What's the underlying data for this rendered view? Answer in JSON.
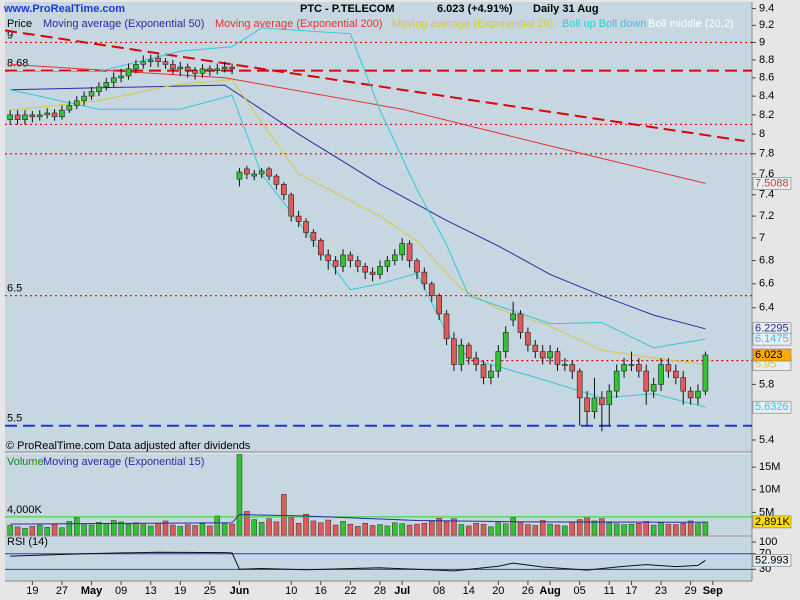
{
  "header": {
    "site": "www.ProRealTime.com",
    "instrument": "PTC - P.TELECOM",
    "last": "6.023 (+4.91%)",
    "period": "Daily  31 Aug"
  },
  "footer": "© ProRealTime.com  Data adjusted after dividends",
  "chart_data": [
    {
      "type": "candlestick",
      "title": "Price",
      "log_scale": true,
      "ylim": [
        5.4,
        9.48
      ],
      "xlim": [
        -0.7,
        100.3
      ],
      "yticks": [
        9.4,
        9.2,
        9,
        8.8,
        8.6,
        8.4,
        8.2,
        8,
        7.8,
        7.6,
        7.4,
        7.2,
        7,
        6.8,
        6.6,
        6.4,
        5.8,
        5.4
      ],
      "xticks": [
        {
          "value": 3,
          "label": "19"
        },
        {
          "value": 7,
          "label": "27"
        },
        {
          "value": 11,
          "label": "May"
        },
        {
          "value": 15,
          "label": "09"
        },
        {
          "value": 19,
          "label": "13"
        },
        {
          "value": 23,
          "label": "19"
        },
        {
          "value": 27,
          "label": "25"
        },
        {
          "value": 31,
          "label": "Jun"
        },
        {
          "value": 38,
          "label": "10"
        },
        {
          "value": 42,
          "label": "16"
        },
        {
          "value": 46,
          "label": "22"
        },
        {
          "value": 50,
          "label": "28"
        },
        {
          "value": 53,
          "label": "Jul"
        },
        {
          "value": 58,
          "label": "08"
        },
        {
          "value": 62,
          "label": "14"
        },
        {
          "value": 66,
          "label": "20"
        },
        {
          "value": 70,
          "label": "26"
        },
        {
          "value": 73,
          "label": "Aug"
        },
        {
          "value": 77,
          "label": "05"
        },
        {
          "value": 81,
          "label": "11"
        },
        {
          "value": 84,
          "label": "17"
        },
        {
          "value": 88,
          "label": "23"
        },
        {
          "value": 92,
          "label": "29"
        },
        {
          "value": 95,
          "label": "Sep"
        }
      ],
      "up_color": "#33c233",
      "down_color": "#e05a5a",
      "open": [
        8.15,
        8.2,
        8.15,
        8.2,
        8.18,
        8.2,
        8.22,
        8.18,
        8.25,
        8.3,
        8.35,
        8.4,
        8.45,
        8.5,
        8.55,
        8.6,
        8.62,
        8.7,
        8.75,
        8.78,
        8.82,
        8.78,
        8.75,
        8.7,
        8.72,
        8.68,
        8.65,
        8.7,
        8.68,
        8.7,
        8.72,
        7.55,
        7.65,
        7.58,
        7.6,
        7.65,
        7.58,
        7.5,
        7.4,
        7.2,
        7.15,
        7.05,
        6.98,
        6.85,
        6.8,
        6.75,
        6.85,
        6.8,
        6.75,
        6.7,
        6.68,
        6.75,
        6.8,
        6.85,
        6.95,
        6.8,
        6.7,
        6.6,
        6.5,
        6.35,
        6.15,
        5.95,
        6.1,
        6.0,
        5.95,
        5.85,
        5.9,
        6.05,
        6.3,
        6.35,
        6.2,
        6.1,
        6.05,
        6.0,
        6.05,
        5.95,
        5.95,
        5.9,
        5.7,
        5.6,
        5.7,
        5.65,
        5.75,
        5.9,
        5.95,
        5.95,
        5.9,
        5.75,
        5.8,
        5.95,
        5.9,
        5.85,
        5.75,
        5.7,
        5.75
      ],
      "high": [
        8.25,
        8.25,
        8.25,
        8.24,
        8.25,
        8.27,
        8.26,
        8.3,
        8.35,
        8.4,
        8.45,
        8.5,
        8.55,
        8.6,
        8.66,
        8.7,
        8.76,
        8.8,
        8.85,
        8.86,
        8.86,
        8.82,
        8.8,
        8.78,
        8.76,
        8.72,
        8.75,
        8.74,
        8.76,
        8.78,
        8.76,
        7.66,
        7.68,
        7.64,
        7.66,
        7.67,
        7.6,
        7.52,
        7.42,
        7.25,
        7.18,
        7.08,
        7.0,
        6.9,
        6.84,
        6.9,
        6.88,
        6.84,
        6.78,
        6.74,
        6.8,
        6.84,
        6.9,
        7.0,
        6.98,
        6.82,
        6.74,
        6.62,
        6.52,
        6.38,
        6.2,
        6.15,
        6.12,
        6.05,
        5.98,
        5.95,
        6.1,
        6.25,
        6.45,
        6.38,
        6.24,
        6.14,
        6.1,
        6.1,
        6.08,
        6.0,
        5.98,
        5.92,
        5.75,
        5.85,
        5.75,
        5.8,
        5.95,
        6.0,
        6.05,
        6.0,
        5.95,
        5.85,
        6.0,
        6.0,
        5.95,
        5.9,
        5.78,
        5.8,
        6.05
      ],
      "low": [
        8.1,
        8.1,
        8.1,
        8.12,
        8.14,
        8.16,
        8.14,
        8.15,
        8.22,
        8.26,
        8.3,
        8.36,
        8.4,
        8.46,
        8.5,
        8.55,
        8.58,
        8.65,
        8.7,
        8.72,
        8.72,
        8.7,
        8.64,
        8.62,
        8.6,
        8.58,
        8.6,
        8.62,
        8.64,
        8.66,
        8.64,
        7.48,
        7.55,
        7.54,
        7.56,
        7.54,
        7.45,
        7.35,
        7.15,
        7.1,
        7.0,
        6.92,
        6.8,
        6.72,
        6.68,
        6.7,
        6.74,
        6.7,
        6.64,
        6.62,
        6.64,
        6.7,
        6.76,
        6.8,
        6.74,
        6.64,
        6.55,
        6.45,
        6.3,
        6.1,
        5.9,
        5.9,
        5.95,
        5.9,
        5.8,
        5.8,
        5.85,
        6.0,
        6.25,
        6.15,
        6.05,
        6.0,
        5.95,
        5.95,
        5.9,
        5.9,
        5.84,
        5.5,
        5.5,
        5.55,
        5.46,
        5.5,
        5.7,
        5.85,
        5.9,
        5.85,
        5.65,
        5.7,
        5.75,
        5.85,
        5.8,
        5.65,
        5.65,
        5.65,
        5.72
      ],
      "close": [
        8.2,
        8.15,
        8.2,
        8.18,
        8.2,
        8.22,
        8.18,
        8.25,
        8.3,
        8.35,
        8.4,
        8.45,
        8.5,
        8.55,
        8.6,
        8.62,
        8.7,
        8.75,
        8.78,
        8.8,
        8.78,
        8.75,
        8.7,
        8.72,
        8.68,
        8.65,
        8.7,
        8.68,
        8.7,
        8.72,
        8.7,
        7.62,
        7.6,
        7.6,
        7.63,
        7.58,
        7.5,
        7.4,
        7.2,
        7.15,
        7.05,
        6.98,
        6.85,
        6.8,
        6.75,
        6.85,
        6.8,
        6.75,
        6.7,
        6.68,
        6.75,
        6.8,
        6.85,
        6.95,
        6.8,
        6.7,
        6.6,
        6.5,
        6.35,
        6.15,
        5.95,
        6.1,
        6.0,
        5.95,
        5.85,
        5.9,
        6.05,
        6.2,
        6.35,
        6.2,
        6.1,
        6.05,
        6.0,
        6.05,
        5.95,
        5.95,
        5.9,
        5.7,
        5.6,
        5.7,
        5.65,
        5.75,
        5.9,
        5.95,
        5.95,
        5.9,
        5.75,
        5.8,
        5.95,
        5.9,
        5.85,
        5.75,
        5.7,
        5.75,
        6.023
      ],
      "overlays": [
        {
          "name": "Moving average (Exponential 50)",
          "color": "#2a2aa0",
          "x": [
            0,
            29,
            39,
            50,
            59,
            66,
            73,
            80,
            87,
            94
          ],
          "values": [
            8.47,
            8.52,
            8.0,
            7.5,
            7.16,
            6.93,
            6.68,
            6.5,
            6.34,
            6.2295
          ]
        },
        {
          "name": "Moving average (Exponential 200)",
          "color": "#e83030",
          "x": [
            0,
            29,
            53,
            73,
            94
          ],
          "values": [
            8.75,
            8.6,
            8.26,
            7.88,
            7.5088
          ]
        },
        {
          "name": "Moving average (Exponential 20)",
          "color": "#d8c838",
          "x": [
            0,
            12,
            22,
            30,
            34,
            39,
            50,
            55,
            61,
            66,
            73,
            80,
            87,
            94
          ],
          "values": [
            8.25,
            8.35,
            8.52,
            8.58,
            8.12,
            7.6,
            7.2,
            6.97,
            6.56,
            6.39,
            6.25,
            6.06,
            6.0,
            5.95
          ]
        },
        {
          "name": "Boll up Boll down",
          "color": "#30c8d8",
          "x": [
            0,
            12,
            23,
            30,
            34,
            46,
            50,
            55,
            59,
            62,
            73,
            80,
            87,
            94
          ],
          "upper": [
            8.67,
            8.67,
            8.9,
            8.95,
            9.17,
            9.1,
            8.25,
            7.45,
            6.94,
            6.5,
            6.27,
            6.28,
            6.08,
            6.1475
          ],
          "lower": [
            8.47,
            8.26,
            8.26,
            8.41,
            7.6,
            6.55,
            6.6,
            6.69,
            6.2,
            6.0,
            5.82,
            5.7,
            5.73,
            5.6326
          ]
        }
      ],
      "legend_extra": {
        "name": "Boll middle (20,2)",
        "color": "#ffffff"
      },
      "levels": [
        {
          "value": 9,
          "label": "9",
          "color": "#e00000",
          "style": "dotted"
        },
        {
          "value": 8.68,
          "label": "8.68",
          "color": "#e00000",
          "style": "dashed"
        },
        {
          "value": 8.1,
          "color": "#e00000",
          "style": "dotted"
        },
        {
          "value": 7.8,
          "color": "#e00000",
          "style": "dotted"
        },
        {
          "value": 6.5,
          "label": "6.5",
          "color": "#e00000",
          "style": "dotted"
        },
        {
          "value": 5.98,
          "from": 61,
          "color": "#e00000",
          "style": "dotted"
        },
        {
          "value": 5.5,
          "label": "5.5",
          "color": "#1a3ad8",
          "style": "dashed"
        }
      ],
      "trendline": {
        "x": [
          -0.7,
          99.3
        ],
        "values": [
          9.14,
          7.93
        ],
        "color": "#e00000"
      }
    },
    {
      "type": "bar",
      "title": "Volume",
      "ylim": [
        0,
        17900000
      ],
      "yticks": [
        {
          "value": 5000000,
          "label": "5M"
        },
        {
          "value": 10000000,
          "label": "10M"
        },
        {
          "value": 15000000,
          "label": "15M"
        }
      ],
      "values": [
        2100000,
        1800000,
        1500000,
        1900000,
        2200000,
        1700000,
        2400000,
        1600000,
        3000000,
        3800000,
        2500000,
        2200000,
        2800000,
        2600000,
        3200000,
        2900000,
        2400000,
        2700000,
        2300000,
        2000000,
        2600000,
        3100000,
        2200000,
        1900000,
        2300000,
        2100000,
        2500000,
        2000000,
        4200000,
        2600000,
        2400000,
        17800000,
        5200000,
        3400000,
        2800000,
        3600000,
        2900000,
        9000000,
        3800000,
        2600000,
        4600000,
        3100000,
        2700000,
        3300000,
        2200000,
        3000000,
        2400000,
        1900000,
        2600000,
        2100000,
        2300000,
        2000000,
        2700000,
        2500000,
        2200000,
        2400000,
        2600000,
        3100000,
        3700000,
        2900000,
        3600000,
        2300000,
        2000000,
        2600000,
        2400000,
        1800000,
        2700000,
        2500000,
        3800000,
        2900000,
        2300000,
        2100000,
        3200000,
        2400000,
        2200000,
        2000000,
        2800000,
        3400000,
        4000000,
        3100000,
        3600000,
        2700000,
        2500000,
        2300000,
        2400000,
        2600000,
        3000000,
        2200000,
        2700000,
        2400000,
        2300000,
        2600000,
        3100000,
        2500000,
        2891000
      ],
      "value_labels": {
        "94": "2,891K"
      },
      "level": {
        "value": 4000000,
        "label": "4,000K",
        "color": "#30d030"
      },
      "overlay": {
        "name": "Moving average (Exponential 15)",
        "color": "#2a2aa0",
        "x": [
          0,
          30,
          31,
          40,
          55,
          70,
          94
        ],
        "values": [
          2400000,
          2700000,
          4500000,
          4200000,
          3200000,
          2900000,
          2800000
        ]
      }
    },
    {
      "type": "line",
      "title": "RSI (14)",
      "ylim": [
        0,
        113
      ],
      "yticks": [
        100,
        70,
        30
      ],
      "levels": [
        70,
        30
      ],
      "color": "#101010",
      "x": [
        0,
        10,
        20,
        29,
        30,
        31,
        34,
        40,
        50,
        55,
        60,
        66,
        68,
        72,
        78,
        82,
        86,
        90,
        93,
        94
      ],
      "values": [
        64,
        70,
        74,
        73,
        72,
        30,
        32,
        29,
        34,
        30,
        26,
        38,
        46,
        36,
        28,
        36,
        42,
        37,
        40,
        52.993
      ]
    }
  ]
}
